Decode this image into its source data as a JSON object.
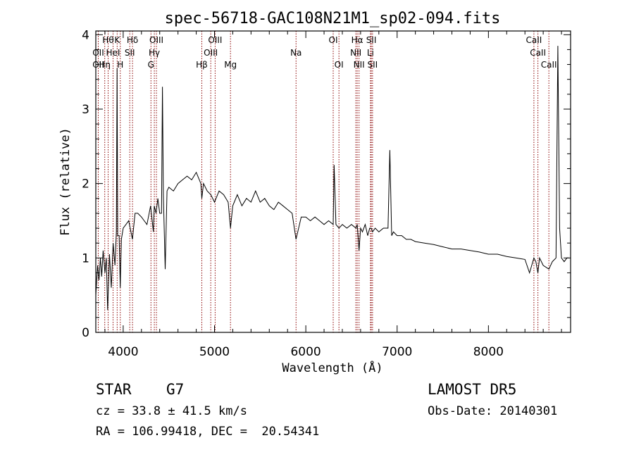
{
  "chart_data": {
    "type": "line",
    "title": "spec-56718-GAC108N21M1_sp02-094.fits",
    "xlabel": "Wavelength (Å)",
    "ylabel": "Flux (relative)",
    "xlim": [
      3700,
      8900
    ],
    "ylim": [
      0,
      4.05
    ],
    "xticks": [
      4000,
      5000,
      6000,
      7000,
      8000
    ],
    "xtick_labels": [
      "4000",
      "5000",
      "6000",
      "7000",
      "8000"
    ],
    "yticks": [
      0,
      1,
      2,
      3,
      4
    ],
    "ytick_labels": [
      "0",
      "1",
      "2",
      "3",
      "4"
    ],
    "grid": false,
    "line_color": "#000000",
    "marker_color": "#8b0000",
    "series": [
      {
        "x": [
          3700,
          3720,
          3735,
          3750,
          3765,
          3780,
          3800,
          3815,
          3830,
          3850,
          3870,
          3890,
          3910,
          3925,
          3933,
          3940,
          3955,
          3968,
          3980,
          4000,
          4030,
          4060,
          4101,
          4130,
          4160,
          4200,
          4230,
          4260,
          4300,
          4330,
          4340,
          4360,
          4380,
          4400,
          4410,
          4420,
          4430,
          4440,
          4460,
          4480,
          4500,
          4550,
          4600,
          4650,
          4700,
          4750,
          4800,
          4850,
          4861,
          4880,
          4920,
          4960,
          5000,
          5050,
          5100,
          5150,
          5175,
          5200,
          5250,
          5300,
          5350,
          5400,
          5450,
          5500,
          5550,
          5600,
          5650,
          5700,
          5750,
          5800,
          5850,
          5893,
          5950,
          6000,
          6050,
          6100,
          6150,
          6200,
          6250,
          6300,
          6310,
          6330,
          6363,
          6400,
          6450,
          6500,
          6550,
          6563,
          6583,
          6600,
          6620,
          6650,
          6678,
          6700,
          6717,
          6731,
          6760,
          6800,
          6850,
          6900,
          6920,
          6940,
          6960,
          7000,
          7050,
          7100,
          7150,
          7200,
          7300,
          7400,
          7500,
          7600,
          7700,
          7800,
          7900,
          8000,
          8100,
          8200,
          8300,
          8400,
          8450,
          8498,
          8520,
          8542,
          8560,
          8600,
          8662,
          8700,
          8740,
          8760,
          8780,
          8800,
          8830,
          8860,
          8880
        ],
        "y": [
          0.5,
          0.9,
          0.7,
          1.0,
          0.75,
          1.1,
          0.8,
          1.0,
          0.3,
          1.05,
          0.6,
          1.2,
          0.9,
          1.35,
          3.55,
          1.3,
          1.3,
          0.6,
          1.25,
          1.4,
          1.45,
          1.5,
          1.25,
          1.6,
          1.6,
          1.55,
          1.5,
          1.45,
          1.7,
          1.35,
          1.7,
          1.6,
          1.8,
          1.6,
          1.6,
          1.6,
          3.3,
          1.85,
          0.85,
          1.9,
          1.95,
          1.9,
          2.0,
          2.05,
          2.1,
          2.05,
          2.15,
          2.0,
          1.8,
          2.0,
          1.9,
          1.85,
          1.75,
          1.9,
          1.85,
          1.75,
          1.4,
          1.7,
          1.85,
          1.7,
          1.8,
          1.75,
          1.9,
          1.75,
          1.8,
          1.7,
          1.65,
          1.75,
          1.7,
          1.65,
          1.6,
          1.25,
          1.55,
          1.55,
          1.5,
          1.55,
          1.5,
          1.45,
          1.5,
          1.45,
          2.25,
          1.45,
          1.4,
          1.45,
          1.4,
          1.45,
          1.4,
          1.45,
          1.1,
          1.4,
          1.35,
          1.45,
          1.3,
          1.4,
          1.4,
          1.35,
          1.4,
          1.35,
          1.4,
          1.4,
          2.45,
          1.3,
          1.35,
          1.3,
          1.3,
          1.25,
          1.25,
          1.22,
          1.2,
          1.18,
          1.15,
          1.12,
          1.12,
          1.1,
          1.08,
          1.05,
          1.05,
          1.02,
          1.0,
          0.98,
          0.8,
          1.0,
          0.95,
          0.8,
          1.0,
          0.9,
          0.85,
          0.95,
          1.0,
          3.85,
          1.4,
          1.0,
          0.95,
          1.0,
          1.0
        ]
      }
    ],
    "spectral_lines": [
      {
        "x": 3727,
        "label": "OII",
        "row": 2
      },
      {
        "x": 3727,
        "label": "OII",
        "row": 1
      },
      {
        "x": 3798,
        "label": "Hη",
        "row": 2
      },
      {
        "x": 3835,
        "label": "Hθ",
        "row": 0
      },
      {
        "x": 3889,
        "label": "HeI",
        "row": 1
      },
      {
        "x": 3934,
        "label": "K",
        "row": 0
      },
      {
        "x": 3968,
        "label": "H",
        "row": 2
      },
      {
        "x": 4072,
        "label": "SII",
        "row": 1
      },
      {
        "x": 4102,
        "label": "Hδ",
        "row": 0
      },
      {
        "x": 4304,
        "label": "G",
        "row": 2
      },
      {
        "x": 4341,
        "label": "Hγ",
        "row": 1
      },
      {
        "x": 4364,
        "label": "OIII",
        "row": 0
      },
      {
        "x": 4861,
        "label": "Hβ",
        "row": 2
      },
      {
        "x": 4959,
        "label": "OIII",
        "row": 1
      },
      {
        "x": 5007,
        "label": "OIII",
        "row": 0
      },
      {
        "x": 5175,
        "label": "Mg",
        "row": 2
      },
      {
        "x": 5893,
        "label": "Na",
        "row": 1
      },
      {
        "x": 6300,
        "label": "OI",
        "row": 0
      },
      {
        "x": 6363,
        "label": "OI",
        "row": 2
      },
      {
        "x": 6548,
        "label": "NII",
        "row": 1
      },
      {
        "x": 6563,
        "label": "Hα",
        "row": 0
      },
      {
        "x": 6583,
        "label": "NII",
        "row": 2
      },
      {
        "x": 6708,
        "label": "Li",
        "row": 1
      },
      {
        "x": 6717,
        "label": "SII",
        "row": 0
      },
      {
        "x": 6731,
        "label": "SII",
        "row": 2
      },
      {
        "x": 8498,
        "label": "CaII",
        "row": 0
      },
      {
        "x": 8542,
        "label": "CaII",
        "row": 1
      },
      {
        "x": 8662,
        "label": "CaII",
        "row": 2
      }
    ]
  },
  "info": {
    "object_class": "STAR",
    "subclass": "G7",
    "survey": "LAMOST DR5",
    "cz_line": "cz = 33.8 ± 41.5 km/s",
    "obs_date": "Obs-Date: 20140301",
    "coords": "RA = 106.99418, DEC =  20.54341"
  }
}
